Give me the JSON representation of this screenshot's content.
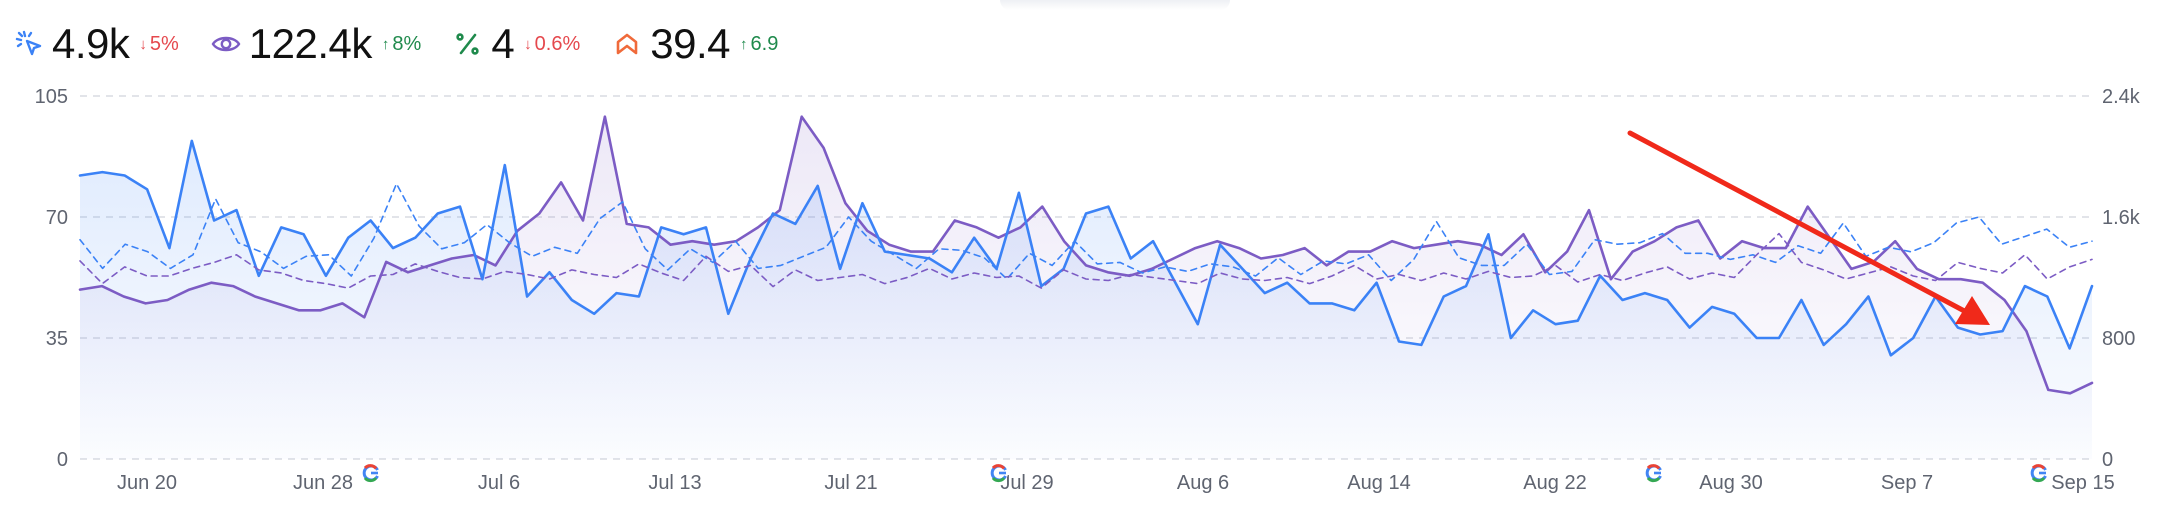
{
  "metrics": [
    {
      "icon": "clicks-icon",
      "value": "4.9k",
      "delta": "5%",
      "direction": "down",
      "color": "#3b82f6"
    },
    {
      "icon": "impressions-eye-icon",
      "value": "122.4k",
      "delta": "8%",
      "direction": "up",
      "color": "#7c5cc4"
    },
    {
      "icon": "ctr-percent-icon",
      "value": "4",
      "delta": "0.6%",
      "direction": "down",
      "color": "#1f8a4c"
    },
    {
      "icon": "position-chevron-icon",
      "value": "39.4",
      "delta": "6.9",
      "direction": "up",
      "color": "#f06a3a"
    }
  ],
  "chart_data": {
    "type": "line",
    "grid": true,
    "x_ticks": [
      "Jun 20",
      "Jun 28",
      "Jul 6",
      "Jul 13",
      "Jul 21",
      "Jul 29",
      "Aug 6",
      "Aug 14",
      "Aug 22",
      "Aug 30",
      "Sep 7",
      "Sep 15"
    ],
    "y_left_ticks": [
      "0",
      "35",
      "70",
      "105"
    ],
    "y_right_ticks": [
      "0",
      "800",
      "1.6k",
      "2.4k"
    ],
    "ylim_left": [
      0,
      105
    ],
    "ylim_right": [
      0,
      2400
    ],
    "colors": {
      "clicks": "#3b82f6",
      "impressions": "#7c5cc4",
      "annotation": "#f0291a"
    },
    "series": [
      {
        "axis": "left",
        "style": "solid",
        "values": [
          82,
          83,
          82,
          78,
          61,
          92,
          69,
          72,
          53,
          67,
          65,
          53,
          64,
          69,
          61,
          64,
          71,
          73,
          52,
          85,
          47,
          54,
          46,
          42,
          48,
          47,
          67,
          65,
          67,
          42,
          58,
          71,
          68,
          79,
          55,
          74,
          60,
          59,
          58,
          54,
          64,
          55,
          77,
          50,
          55,
          71,
          73,
          58,
          63,
          51,
          39,
          62,
          55,
          48,
          51,
          45,
          45,
          43,
          51,
          34,
          33,
          47,
          50,
          65,
          35,
          43,
          39,
          40,
          53,
          46,
          48,
          46,
          38,
          44,
          42,
          35,
          35,
          46,
          33,
          39,
          47,
          30,
          35,
          47,
          38,
          36,
          37,
          50,
          47,
          32,
          50
        ]
      },
      {
        "axis": "left",
        "style": "solid",
        "values": [
          49,
          50,
          47,
          45,
          46,
          49,
          51,
          50,
          47,
          45,
          43,
          43,
          45,
          41,
          57,
          54,
          56,
          58,
          59,
          56,
          66,
          71,
          80,
          69,
          99,
          68,
          67,
          62,
          63,
          62,
          63,
          67,
          72,
          99,
          90,
          74,
          66,
          62,
          60,
          60,
          69,
          67,
          64,
          67,
          73,
          63,
          56,
          54,
          53,
          55,
          58,
          61,
          63,
          61,
          58,
          59,
          61,
          56,
          60,
          60,
          63,
          61,
          62,
          63,
          62,
          59,
          65,
          54,
          60,
          72,
          52,
          60,
          63,
          67,
          69,
          58,
          63,
          61,
          61,
          73,
          64,
          55,
          57,
          63,
          55,
          52,
          52,
          51,
          46,
          37,
          20,
          19,
          22
        ]
      },
      {
        "axis": "right",
        "style": "dashed",
        "values": [
          1450,
          1260,
          1420,
          1370,
          1260,
          1350,
          1720,
          1430,
          1370,
          1260,
          1340,
          1350,
          1210,
          1460,
          1820,
          1540,
          1390,
          1430,
          1550,
          1430,
          1340,
          1400,
          1360,
          1590,
          1700,
          1390,
          1250,
          1390,
          1300,
          1440,
          1260,
          1280,
          1340,
          1400,
          1600,
          1440,
          1350,
          1260,
          1390,
          1380,
          1330,
          1190,
          1360,
          1280,
          1440,
          1290,
          1300,
          1230,
          1270,
          1240,
          1290,
          1270,
          1210,
          1330,
          1220,
          1310,
          1290,
          1350,
          1180,
          1320,
          1570,
          1330,
          1280,
          1280,
          1420,
          1220,
          1240,
          1450,
          1420,
          1430,
          1490,
          1360,
          1360,
          1320,
          1350,
          1300,
          1410,
          1360,
          1560,
          1340,
          1400,
          1370,
          1430,
          1560,
          1600,
          1420,
          1470,
          1520,
          1400,
          1440
        ]
      },
      {
        "axis": "right",
        "style": "dashed",
        "values": [
          1310,
          1160,
          1270,
          1210,
          1210,
          1260,
          1300,
          1350,
          1250,
          1230,
          1180,
          1160,
          1130,
          1210,
          1220,
          1290,
          1240,
          1200,
          1190,
          1240,
          1220,
          1190,
          1250,
          1220,
          1200,
          1290,
          1230,
          1180,
          1340,
          1240,
          1280,
          1140,
          1250,
          1180,
          1200,
          1220,
          1160,
          1200,
          1260,
          1190,
          1230,
          1200,
          1210,
          1130,
          1250,
          1190,
          1180,
          1220,
          1200,
          1180,
          1160,
          1230,
          1190,
          1180,
          1200,
          1160,
          1210,
          1280,
          1190,
          1220,
          1180,
          1230,
          1190,
          1240,
          1200,
          1210,
          1280,
          1170,
          1220,
          1180,
          1230,
          1270,
          1190,
          1230,
          1200,
          1350,
          1490,
          1300,
          1250,
          1190,
          1230,
          1270,
          1210,
          1180,
          1300,
          1260,
          1230,
          1350,
          1190,
          1270,
          1320
        ]
      }
    ]
  }
}
